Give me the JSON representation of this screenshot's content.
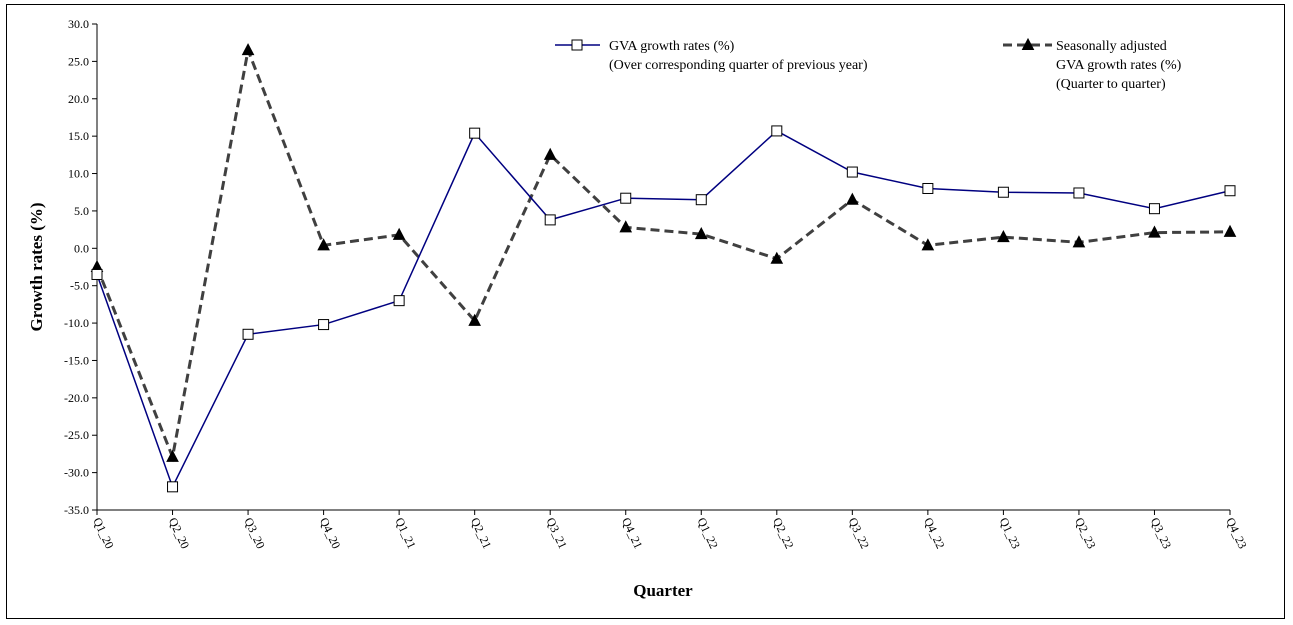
{
  "chart_data": {
    "type": "line",
    "title": "",
    "xlabel": "Quarter",
    "ylabel": "Growth rates (%)",
    "ylim": [
      -35.0,
      30.0
    ],
    "ystep": 5.0,
    "y_tick_labels": [
      "-35.0",
      "-30.0",
      "-25.0",
      "-20.0",
      "-15.0",
      "-10.0",
      "-5.0",
      "0.0",
      "5.0",
      "10.0",
      "15.0",
      "20.0",
      "25.0",
      "30.0"
    ],
    "categories": [
      "Q1_20",
      "Q2_20",
      "Q3_20",
      "Q4_20",
      "Q1_21",
      "Q2_21",
      "Q3_21",
      "Q4_21",
      "Q1_22",
      "Q2_22",
      "Q3_22",
      "Q4_22",
      "Q1_23",
      "Q2_23",
      "Q3_23",
      "Q4_23"
    ],
    "legend_position": "top-right",
    "grid": false,
    "series": [
      {
        "name_lines": [
          "GVA growth rates (%)",
          "(Over corresponding quarter of previous year)"
        ],
        "color": "#000080",
        "line_style": "solid",
        "marker": "open-square",
        "values": [
          -3.5,
          -31.9,
          -11.5,
          -10.2,
          -7.0,
          15.4,
          3.8,
          6.7,
          6.5,
          15.7,
          10.2,
          8.0,
          7.5,
          7.4,
          5.3,
          7.7
        ]
      },
      {
        "name_lines": [
          "Seasonally adjusted",
          "GVA growth rates (%)",
          "(Quarter to quarter)"
        ],
        "color": "#404040",
        "line_style": "dashed",
        "marker": "filled-triangle",
        "values": [
          -2.5,
          -27.9,
          26.5,
          0.4,
          1.8,
          -9.7,
          12.5,
          2.8,
          1.9,
          -1.4,
          6.5,
          0.4,
          1.5,
          0.8,
          2.1,
          2.2
        ]
      }
    ]
  }
}
